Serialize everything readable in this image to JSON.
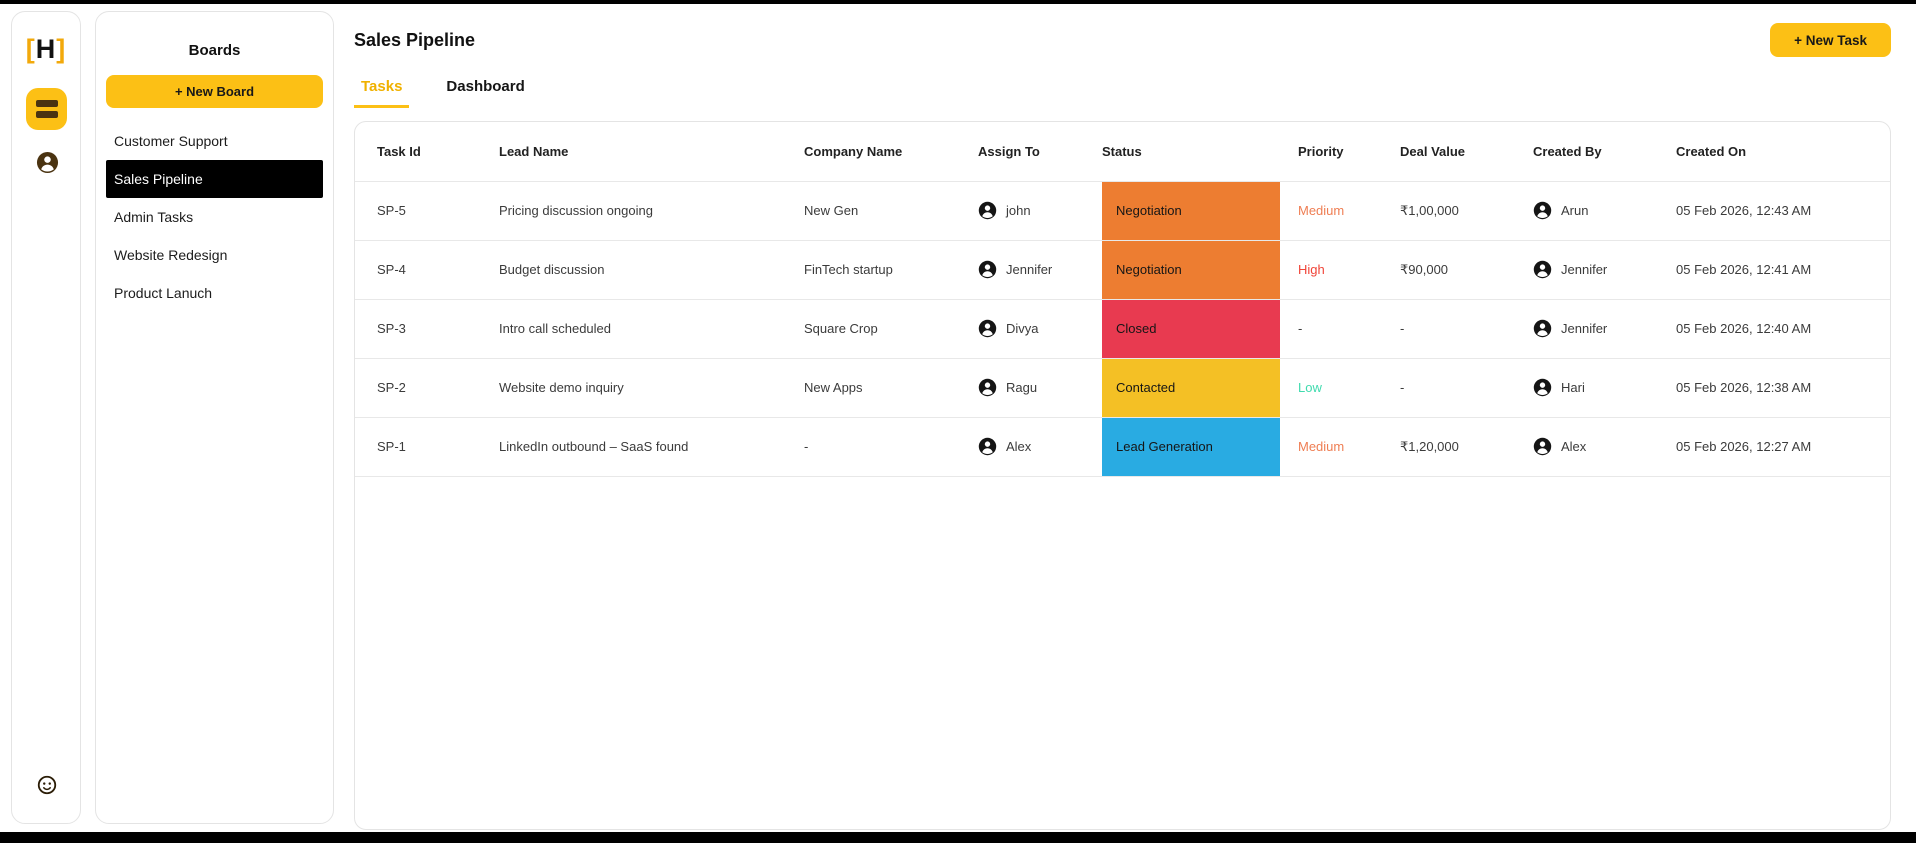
{
  "rail": {
    "logo": {
      "open_bracket": "[",
      "letter": "H",
      "close_bracket": "]"
    },
    "icons": {
      "nav": "boards-icon",
      "user": "user-avatar-icon",
      "bottom": "face-icon"
    }
  },
  "boards_panel": {
    "title": "Boards",
    "new_board_button": {
      "icon": "+",
      "label": "+ New Board"
    },
    "items": [
      {
        "label": "Customer Support",
        "selected": false
      },
      {
        "label": "Sales Pipeline",
        "selected": true
      },
      {
        "label": "Admin Tasks",
        "selected": false
      },
      {
        "label": "Website Redesign",
        "selected": false
      },
      {
        "label": "Product Lanuch",
        "selected": false
      }
    ]
  },
  "main": {
    "title": "Sales Pipeline",
    "new_task_button": {
      "icon": "+",
      "label": "+ New Task"
    },
    "tabs": [
      {
        "label": "Tasks",
        "active": true
      },
      {
        "label": "Dashboard",
        "active": false
      }
    ],
    "table": {
      "columns": [
        "Task Id",
        "Lead Name",
        "Company Name",
        "Assign To",
        "Status",
        "Priority",
        "Deal Value",
        "Created By",
        "Created On"
      ],
      "rows": [
        {
          "task_id": "SP-5",
          "lead_name": "Pricing discussion ongoing",
          "company_name": "New Gen",
          "assign_to": "john",
          "status": {
            "label": "Negotiation",
            "color": "#ed7d31"
          },
          "priority": {
            "label": "Medium",
            "color": "#ef7e53"
          },
          "deal_value": "₹1,00,000",
          "created_by": "Arun",
          "created_on": "05 Feb 2026, 12:43 AM"
        },
        {
          "task_id": "SP-4",
          "lead_name": "Budget discussion",
          "company_name": "FinTech startup",
          "assign_to": "Jennifer",
          "status": {
            "label": "Negotiation",
            "color": "#ed7d31"
          },
          "priority": {
            "label": "High",
            "color": "#f04438"
          },
          "deal_value": "₹90,000",
          "created_by": "Jennifer",
          "created_on": "05 Feb 2026, 12:41 AM"
        },
        {
          "task_id": "SP-3",
          "lead_name": "Intro call scheduled",
          "company_name": "Square Crop",
          "assign_to": "Divya",
          "status": {
            "label": "Closed",
            "color": "#e83a50"
          },
          "priority": {
            "label": "-",
            "color": "#3b3b3b"
          },
          "deal_value": "-",
          "created_by": "Jennifer",
          "created_on": "05 Feb 2026, 12:40 AM"
        },
        {
          "task_id": "SP-2",
          "lead_name": "Website demo inquiry",
          "company_name": "New Apps",
          "assign_to": "Ragu",
          "status": {
            "label": "Contacted",
            "color": "#f4c025"
          },
          "priority": {
            "label": "Low",
            "color": "#3fdbae"
          },
          "deal_value": "-",
          "created_by": "Hari",
          "created_on": "05 Feb 2026, 12:38 AM"
        },
        {
          "task_id": "SP-1",
          "lead_name": "LinkedIn outbound – SaaS found",
          "company_name": "-",
          "assign_to": "Alex",
          "status": {
            "label": "Lead Generation",
            "color": "#29abe2"
          },
          "priority": {
            "label": "Medium",
            "color": "#ef7e53"
          },
          "deal_value": "₹1,20,000",
          "created_by": "Alex",
          "created_on": "05 Feb 2026, 12:27 AM"
        }
      ]
    }
  },
  "colors": {
    "accent_yellow": "#fcc015",
    "tab_active": "#f0b100",
    "selected_board_bg": "#000000",
    "status_negotiation": "#ed7d31",
    "status_closed": "#e83a50",
    "status_contacted": "#f4c025",
    "status_lead_generation": "#29abe2",
    "priority_medium": "#ef7e53",
    "priority_high": "#f04438",
    "priority_low": "#3fdbae"
  }
}
